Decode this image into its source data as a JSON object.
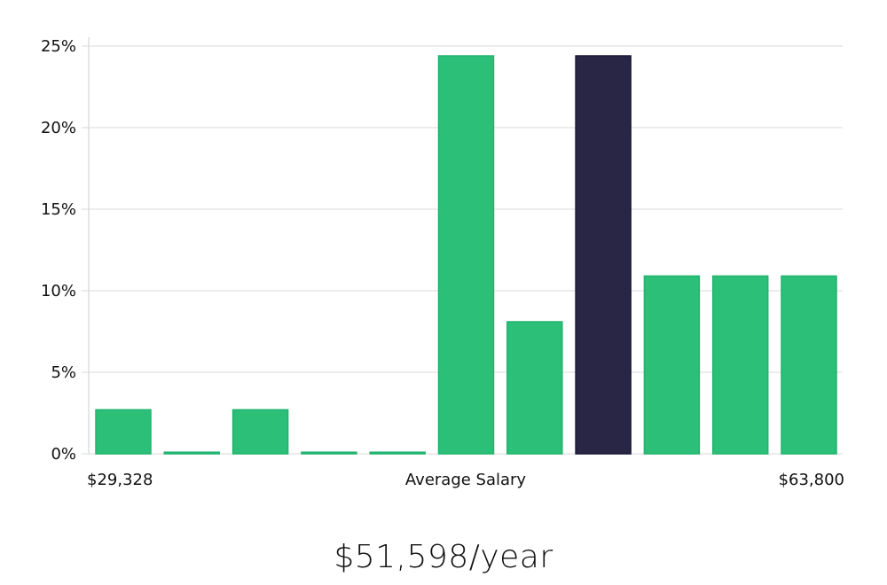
{
  "chart_data": {
    "type": "bar",
    "title": "",
    "xlabel": "Average Salary",
    "ylabel": "",
    "ylim": [
      0,
      25
    ],
    "yticks": [
      "0%",
      "5%",
      "10%",
      "15%",
      "20%",
      "25%"
    ],
    "ytick_values": [
      0,
      5,
      10,
      15,
      20,
      25
    ],
    "x_min_label": "$29,328",
    "x_max_label": "$63,800",
    "values": [
      2.7,
      0.1,
      2.7,
      0.1,
      0.1,
      24.4,
      8.1,
      24.4,
      10.9,
      10.9,
      10.9
    ],
    "highlight_index": 7,
    "colors": {
      "bar": "#2bbf78",
      "bar_stroke": "#22b36e",
      "highlight": "#282545",
      "highlight_stroke": "#1a1838"
    },
    "grid": true
  },
  "headline": "$51,598/year"
}
